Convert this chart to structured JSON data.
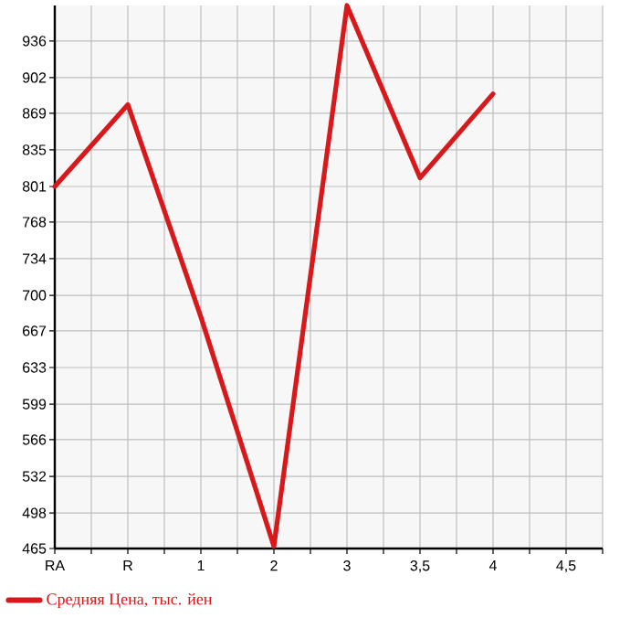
{
  "chart_data": {
    "type": "line",
    "categories": [
      "RA",
      "R",
      "1",
      "2",
      "3",
      "3,5",
      "4",
      "4,5"
    ],
    "series": [
      {
        "name": "Средняя Цена, тыс. йен",
        "color": "#d7191c",
        "values": [
          801,
          877,
          680,
          467,
          969,
          809,
          887,
          null
        ]
      }
    ],
    "ylim": [
      465,
      969
    ],
    "yticks": [
      465,
      498,
      532,
      566,
      599,
      633,
      667,
      700,
      734,
      768,
      801,
      835,
      869,
      902,
      936
    ],
    "grid": true,
    "legend": "bottom left",
    "marker": "none",
    "line_style": "solid"
  }
}
